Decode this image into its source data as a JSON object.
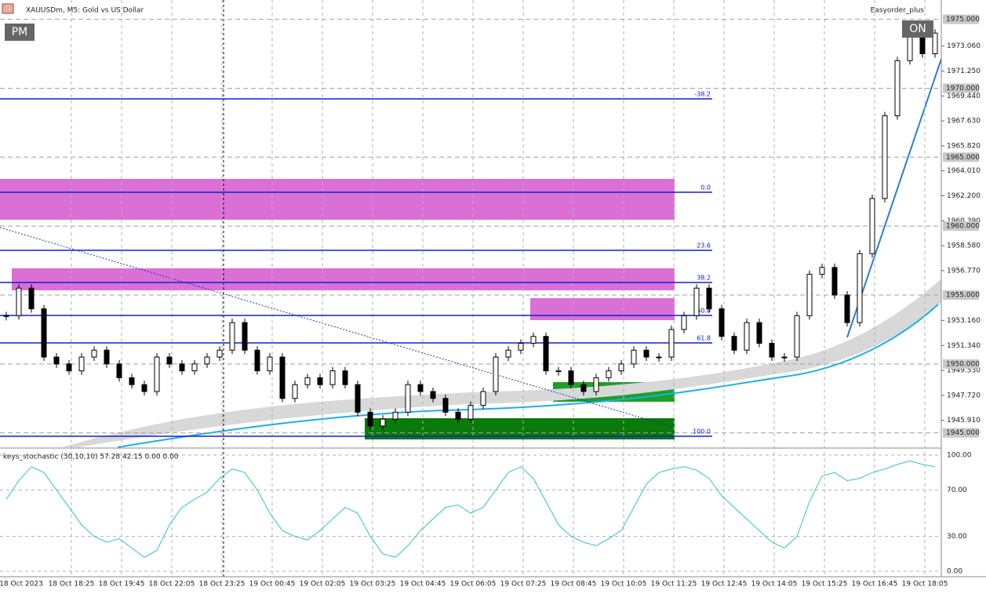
{
  "header": {
    "symbol": "XAUUSDm, M5:  Gold vs US Dollar",
    "expert": "Easyorder_plus",
    "button_left": "PM",
    "button_right": "ON"
  },
  "price_axis": {
    "range": [
      1943.9,
      1976.4
    ],
    "ticks": [
      {
        "value": 1973.06,
        "label": "1973.060"
      },
      {
        "value": 1971.25,
        "label": "1971.250"
      },
      {
        "value": 1969.44,
        "label": "1969.440"
      },
      {
        "value": 1967.63,
        "label": "1967.630"
      },
      {
        "value": 1965.82,
        "label": "1965.820"
      },
      {
        "value": 1964.01,
        "label": "1964.010"
      },
      {
        "value": 1962.2,
        "label": "1962.200"
      },
      {
        "value": 1960.39,
        "label": "1960.390"
      },
      {
        "value": 1958.58,
        "label": "1958.580"
      },
      {
        "value": 1956.77,
        "label": "1956.770"
      },
      {
        "value": 1953.16,
        "label": "1953.160"
      },
      {
        "value": 1951.34,
        "label": "1951.340"
      },
      {
        "value": 1949.53,
        "label": "1949.530"
      },
      {
        "value": 1947.72,
        "label": "1947.720"
      },
      {
        "value": 1945.91,
        "label": "1945.910"
      }
    ],
    "levels": [
      {
        "value": 1975,
        "label": "1975.000"
      },
      {
        "value": 1970,
        "label": "1970.000"
      },
      {
        "value": 1965,
        "label": "1965.000"
      },
      {
        "value": 1960,
        "label": "1960.000"
      },
      {
        "value": 1955,
        "label": "1955.000"
      },
      {
        "value": 1950,
        "label": "1950.000"
      },
      {
        "value": 1945,
        "label": "1945.000"
      }
    ]
  },
  "fib": [
    "-38.2",
    "0.0",
    "23.6",
    "38.2",
    "50.0",
    "61.8",
    "100.0"
  ],
  "price_close": [
    1953.5,
    1955.5,
    1954,
    1950.5,
    1950,
    1949.5,
    1950.5,
    1951,
    1950,
    1949,
    1948.5,
    1948,
    1950.5,
    1950,
    1949.5,
    1950,
    1950.5,
    1951,
    1953,
    1951,
    1949.5,
    1950.5,
    1947.5,
    1948.5,
    1949,
    1948.5,
    1949.5,
    1948.5,
    1946.5,
    1945.5,
    1946,
    1946.5,
    1948.5,
    1948,
    1947.5,
    1946.5,
    1946,
    1947,
    1948,
    1950.5,
    1951,
    1951.5,
    1952,
    1949.5,
    1949.5,
    1948.5,
    1948,
    1949,
    1949.5,
    1950,
    1951,
    1950.5,
    1950.5,
    1952.5,
    1953.5,
    1955.5,
    1954,
    1952,
    1951,
    1953,
    1951.5,
    1950.5,
    1950.5,
    1953.5,
    1956.5,
    1957,
    1955,
    1953,
    1958,
    1962,
    1968,
    1972,
    1974,
    1972.5,
    1974
  ],
  "indicator": {
    "label": "keys_stochastic (30,10,10) 57.28 42.15 0.00 0.00",
    "ticks": [
      {
        "value": 100,
        "label": "100.00"
      },
      {
        "value": 70,
        "label": "70.00"
      },
      {
        "value": 30,
        "label": "30.00"
      },
      {
        "value": 0,
        "label": "0.00"
      }
    ],
    "values": [
      62,
      78,
      90,
      85,
      70,
      55,
      40,
      30,
      25,
      28,
      20,
      12,
      18,
      40,
      55,
      62,
      68,
      80,
      88,
      85,
      70,
      50,
      35,
      30,
      27,
      35,
      45,
      55,
      50,
      30,
      15,
      12,
      22,
      35,
      45,
      55,
      57,
      50,
      55,
      70,
      85,
      90,
      80,
      60,
      40,
      30,
      25,
      22,
      28,
      35,
      55,
      75,
      85,
      88,
      90,
      87,
      80,
      65,
      55,
      45,
      35,
      25,
      20,
      30,
      60,
      82,
      85,
      78,
      80,
      85,
      88,
      92,
      95,
      92,
      90
    ]
  },
  "time_axis": [
    "18 Oct 2023",
    "18 Oct 18:25",
    "18 Oct 19:45",
    "18 Oct 22:05",
    "18 Oct 23:25",
    "19 Oct 00:45",
    "19 Oct 02:05",
    "19 Oct 03:25",
    "19 Oct 04:45",
    "19 Oct 06:05",
    "19 Oct 07:25",
    "19 Oct 08:45",
    "19 Oct 10:05",
    "19 Oct 11:25",
    "19 Oct 12:45",
    "19 Oct 14:05",
    "19 Oct 15:25",
    "19 Oct 16:45",
    "19 Oct 18:05"
  ]
}
